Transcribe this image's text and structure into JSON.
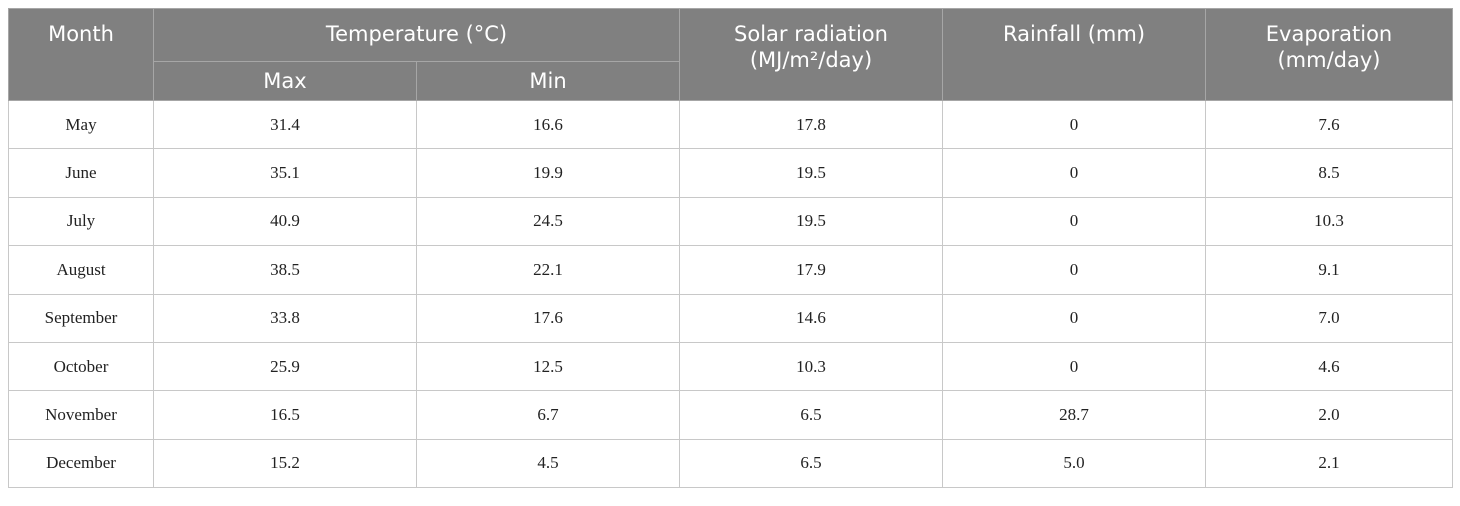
{
  "table": {
    "header": {
      "month": "Month",
      "temperature": "Temperature (°C)",
      "max": "Max",
      "min": "Min",
      "solar": "Solar radiation (MJ/m²/day)",
      "rainfall": "Rainfall (mm)",
      "evaporation": "Evaporation (mm/day)"
    },
    "rows": [
      [
        "May",
        "31.4",
        "16.6",
        "17.8",
        "0",
        "7.6"
      ],
      [
        "June",
        "35.1",
        "19.9",
        "19.5",
        "0",
        "8.5"
      ],
      [
        "July",
        "40.9",
        "24.5",
        "19.5",
        "0",
        "10.3"
      ],
      [
        "August",
        "38.5",
        "22.1",
        "17.9",
        "0",
        "9.1"
      ],
      [
        "September",
        "33.8",
        "17.6",
        "14.6",
        "0",
        "7.0"
      ],
      [
        "October",
        "25.9",
        "12.5",
        "10.3",
        "0",
        "4.6"
      ],
      [
        "November",
        "16.5",
        "6.7",
        "6.5",
        "28.7",
        "2.0"
      ],
      [
        "December",
        "15.2",
        "4.5",
        "6.5",
        "5.0",
        "2.1"
      ]
    ]
  }
}
